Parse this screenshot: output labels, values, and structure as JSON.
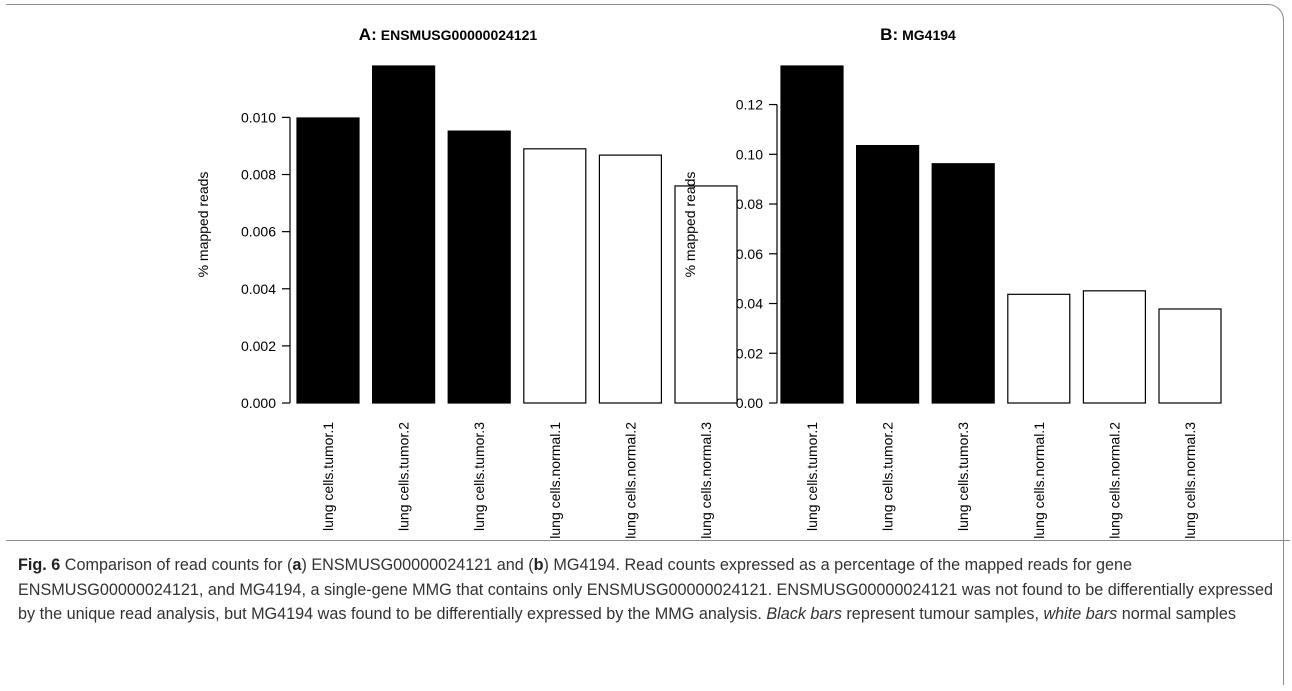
{
  "chart_data": [
    {
      "type": "bar",
      "title_prefix": "A:",
      "title_main": "ENSMUSG00000024121",
      "ylabel": "% mapped reads",
      "ylim": [
        0,
        0.0118
      ],
      "yticks": [
        "0.000",
        "0.002",
        "0.004",
        "0.006",
        "0.008",
        "0.010"
      ],
      "ytick_values": [
        0,
        0.002,
        0.004,
        0.006,
        0.008,
        0.01
      ],
      "categories": [
        "lung cells.tumor.1",
        "lung cells.tumor.2",
        "lung cells.tumor.3",
        "lung cells.normal.1",
        "lung cells.normal.2",
        "lung cells.normal.3"
      ],
      "values": [
        0.00998,
        0.0118,
        0.00952,
        0.0089,
        0.00868,
        0.0076
      ],
      "colors": [
        "#000000",
        "#000000",
        "#000000",
        "#ffffff",
        "#ffffff",
        "#ffffff"
      ]
    },
    {
      "type": "bar",
      "title_prefix": "B:",
      "title_main": "MG4194",
      "ylabel": "% mapped reads",
      "ylim": [
        0,
        0.1355
      ],
      "yticks": [
        "0.00",
        "0.02",
        "0.04",
        "0.06",
        "0.08",
        "0.10",
        "0.12"
      ],
      "ytick_values": [
        0,
        0.02,
        0.04,
        0.06,
        0.08,
        0.1,
        0.12
      ],
      "categories": [
        "lung cells.tumor.1",
        "lung cells.tumor.2",
        "lung cells.tumor.3",
        "lung cells.normal.1",
        "lung cells.normal.2",
        "lung cells.normal.3"
      ],
      "values": [
        0.1355,
        0.1035,
        0.0962,
        0.0437,
        0.0451,
        0.0378
      ],
      "colors": [
        "#000000",
        "#000000",
        "#000000",
        "#ffffff",
        "#ffffff",
        "#ffffff"
      ]
    }
  ],
  "caption": {
    "fig_label": "Fig. 6",
    "p1": " Comparison of read counts for (",
    "a": "a",
    "p2": ") ENSMUSG00000024121 and (",
    "b": "b",
    "p3": ") MG4194. Read counts expressed as a percentage of the mapped reads for gene ENSMUSG00000024121, and MG4194, a single-gene MMG that contains only ENSMUSG00000024121. ENSMUSG00000024121 was not found to be differentially expressed by the unique read analysis, but MG4194 was found to be differentially expressed by the MMG analysis. ",
    "black_bars": "Black bars",
    "p4": " represent tumour samples, ",
    "white_bars": "white bars",
    "p5": " normal samples"
  }
}
